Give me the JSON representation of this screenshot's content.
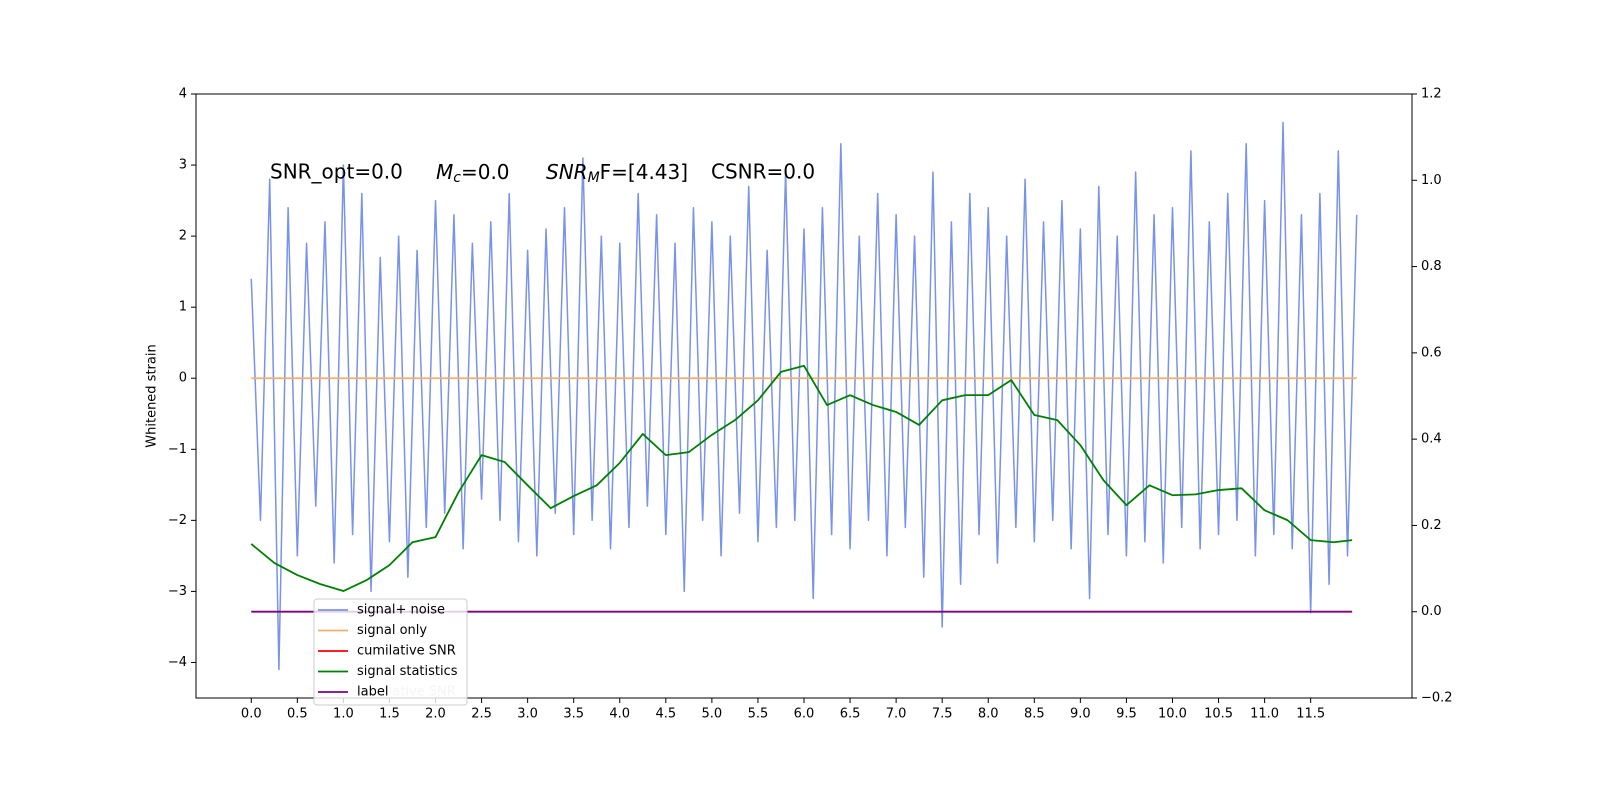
{
  "chart_data": {
    "type": "line",
    "ylabel": "Whitened strain",
    "annotations": {
      "snr_opt": "SNR_opt=0.0",
      "mc": {
        "base": "M",
        "sub": "c",
        "rest": "=0.0"
      },
      "snrmf": {
        "base": "SNR",
        "sub": "M",
        "rest": "F=[4.43]"
      },
      "csnr": "CSNR=0.0"
    },
    "xlim": [
      -0.6,
      12.6
    ],
    "xticks": [
      {
        "value": 0,
        "label": "0.0"
      },
      0.5,
      {
        "value": 1,
        "label": "1.0"
      },
      1.5,
      {
        "value": 2,
        "label": "2.0"
      },
      2.5,
      {
        "value": 3,
        "label": "3.0"
      },
      3.5,
      {
        "value": 4,
        "label": "4.0"
      },
      4.5,
      {
        "value": 5,
        "label": "5.0"
      },
      5.5,
      {
        "value": 6,
        "label": "6.0"
      },
      6.5,
      {
        "value": 7,
        "label": "7.0"
      },
      7.5,
      {
        "value": 8,
        "label": "8.0"
      },
      8.5,
      {
        "value": 9,
        "label": "9.0"
      },
      9.5,
      {
        "value": 10,
        "label": "10.0"
      },
      10.5,
      {
        "value": 11,
        "label": "11.0"
      },
      11.5
    ],
    "ylim": [
      -4.5,
      4
    ],
    "yticks": [
      {
        "value": -4,
        "label": "−4"
      },
      {
        "value": -3,
        "label": "−3"
      },
      {
        "value": -2,
        "label": "−2"
      },
      {
        "value": -1,
        "label": "−1"
      },
      0,
      1,
      2,
      3,
      4
    ],
    "y2lim": [
      -0.2,
      1.2
    ],
    "y2ticks": [
      {
        "value": -0.2,
        "label": "−0.2"
      },
      {
        "value": 0,
        "label": "0.0"
      },
      0.2,
      0.4,
      0.6,
      0.8,
      {
        "value": 1,
        "label": "1.0"
      },
      1.2
    ],
    "legend": "lower left",
    "legend_underlay": "cumilative SNR",
    "series": [
      {
        "name": "signal+ noise",
        "color": "#7893e8",
        "x": [
          0,
          0.1,
          0.2,
          0.3,
          0.4,
          0.5,
          0.6,
          0.7,
          0.8,
          0.9,
          1,
          1.1,
          1.2,
          1.3,
          1.4,
          1.5,
          1.6,
          1.7,
          1.8,
          1.9,
          2,
          2.1,
          2.2,
          2.3,
          2.4,
          2.5,
          2.6,
          2.7,
          2.8,
          2.9,
          3,
          3.1,
          3.2,
          3.3,
          3.4,
          3.5,
          3.6,
          3.7,
          3.8,
          3.9,
          4,
          4.1,
          4.2,
          4.3,
          4.4,
          4.5,
          4.6,
          4.7,
          4.8,
          4.9,
          5,
          5.1,
          5.2,
          5.3,
          5.4,
          5.5,
          5.6,
          5.7,
          5.8,
          5.9,
          6,
          6.1,
          6.2,
          6.3,
          6.4,
          6.5,
          6.6,
          6.7,
          6.8,
          6.9,
          7,
          7.1,
          7.2,
          7.3,
          7.4,
          7.5,
          7.6,
          7.7,
          7.8,
          7.9,
          8,
          8.1,
          8.2,
          8.3,
          8.4,
          8.5,
          8.6,
          8.7,
          8.8,
          8.9,
          9,
          9.1,
          9.2,
          9.3,
          9.4,
          9.5,
          9.6,
          9.7,
          9.8,
          9.9,
          10,
          10.1,
          10.2,
          10.3,
          10.4,
          10.5,
          10.6,
          10.7,
          10.8,
          10.9,
          11,
          11.1,
          11.2,
          11.3,
          11.4,
          11.5,
          11.6,
          11.7,
          11.8,
          11.9,
          12
        ],
        "values": [
          1.4,
          -2.0,
          2.8,
          -4.1,
          2.4,
          -2.5,
          1.9,
          -1.8,
          2.2,
          -2.6,
          3.0,
          -2.2,
          2.6,
          -3.0,
          1.7,
          -2.3,
          2.0,
          -2.8,
          1.8,
          -2.1,
          2.5,
          -1.9,
          2.3,
          -2.4,
          1.9,
          -1.7,
          2.2,
          -2.0,
          2.6,
          -2.3,
          1.8,
          -2.5,
          2.1,
          -1.9,
          2.4,
          -2.2,
          3.1,
          -2.0,
          2.0,
          -2.4,
          1.9,
          -2.1,
          2.6,
          -1.8,
          2.3,
          -2.2,
          1.9,
          -3.0,
          2.4,
          -2.0,
          2.2,
          -2.5,
          2.0,
          -1.9,
          2.7,
          -2.3,
          1.8,
          -2.1,
          2.9,
          -2.0,
          2.1,
          -3.1,
          2.4,
          -2.2,
          3.3,
          -2.4,
          2.0,
          -2.0,
          2.6,
          -2.5,
          2.3,
          -2.1,
          2.0,
          -2.8,
          2.9,
          -3.5,
          2.2,
          -2.9,
          2.6,
          -2.2,
          2.4,
          -2.6,
          2.0,
          -2.1,
          2.8,
          -2.3,
          2.2,
          -2.0,
          2.5,
          -2.4,
          2.1,
          -3.1,
          2.7,
          -2.2,
          2.0,
          -2.5,
          2.9,
          -2.3,
          2.3,
          -2.6,
          2.4,
          -2.1,
          3.2,
          -2.4,
          2.2,
          -2.2,
          2.6,
          -2.0,
          3.3,
          -2.5,
          2.5,
          -2.2,
          3.6,
          -2.4,
          2.3,
          -3.3,
          2.6,
          -2.9,
          3.2,
          -2.5,
          2.3
        ]
      },
      {
        "name": "signal only",
        "color": "#f0b070",
        "x": [
          0,
          12
        ],
        "values": [
          0,
          0
        ]
      },
      {
        "name": "cumilative SNR",
        "color": "red",
        "x": [],
        "values": []
      },
      {
        "name": "signal statistics",
        "color": "green",
        "axis": "y2",
        "x": [
          0,
          0.25,
          0.5,
          0.75,
          1,
          1.25,
          1.5,
          1.75,
          2,
          2.25,
          2.5,
          2.75,
          3,
          3.25,
          3.5,
          3.75,
          4,
          4.25,
          4.5,
          4.75,
          5,
          5.25,
          5.5,
          5.75,
          6,
          6.25,
          6.5,
          6.75,
          7,
          7.25,
          7.5,
          7.75,
          8,
          8.25,
          8.5,
          8.75,
          9,
          9.25,
          9.5,
          9.75,
          10,
          10.25,
          10.5,
          10.75,
          11,
          11.25,
          11.5,
          11.75,
          11.95
        ],
        "values": [
          0.157,
          0.113,
          0.085,
          0.064,
          0.048,
          0.073,
          0.108,
          0.161,
          0.173,
          0.277,
          0.363,
          0.347,
          0.293,
          0.24,
          0.268,
          0.293,
          0.345,
          0.412,
          0.363,
          0.37,
          0.41,
          0.444,
          0.49,
          0.556,
          0.57,
          0.479,
          0.502,
          0.479,
          0.463,
          0.433,
          0.49,
          0.502,
          0.502,
          0.537,
          0.456,
          0.444,
          0.386,
          0.305,
          0.247,
          0.293,
          0.27,
          0.272,
          0.282,
          0.286,
          0.235,
          0.212,
          0.166,
          0.161,
          0.166
        ]
      },
      {
        "name": "label",
        "color": "purple",
        "axis": "y2",
        "x": [
          0,
          11.95
        ],
        "values": [
          0,
          0
        ]
      }
    ]
  }
}
